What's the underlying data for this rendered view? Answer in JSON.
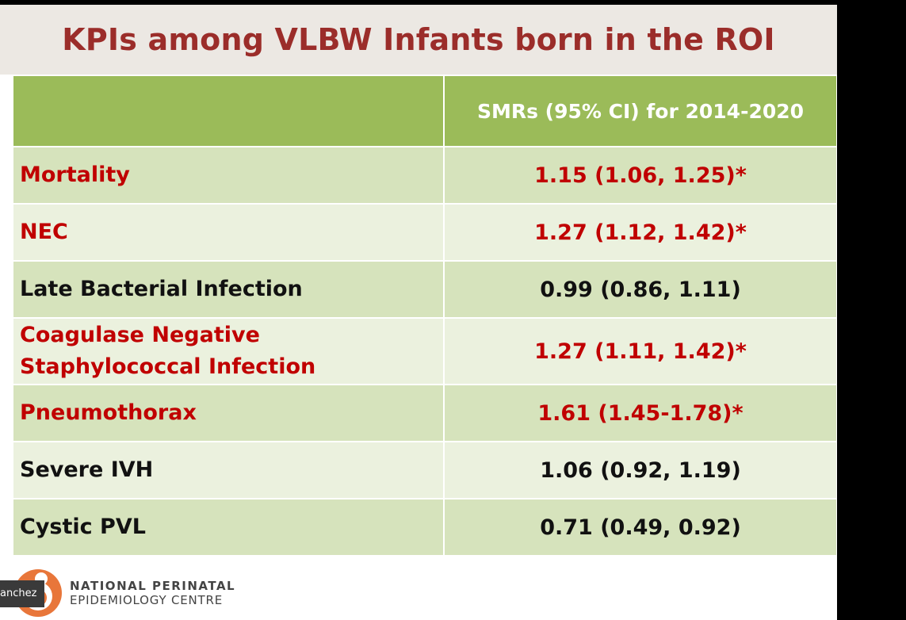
{
  "slide": {
    "title": "KPIs among VLBW Infants born in the ROI",
    "table": {
      "header": [
        "",
        "SMRs (95% CI) for 2014-2020"
      ],
      "rows": [
        {
          "label": "Mortality",
          "value": "1.15 (1.06, 1.25)*"
        },
        {
          "label": "NEC",
          "value": "1.27 (1.12, 1.42)*"
        },
        {
          "label": "Late Bacterial Infection",
          "value": "0.99 (0.86, 1.11)"
        },
        {
          "label": "Coagulase Negative Staphylococcal Infection",
          "value": "1.27 (1.11, 1.42)*"
        },
        {
          "label": "Pneumothorax",
          "value": "1.61 (1.45-1.78)*"
        },
        {
          "label": "Severe IVH",
          "value": "1.06 (0.92, 1.19)"
        },
        {
          "label": "Cystic PVL",
          "value": "0.71 (0.49, 0.92)"
        }
      ]
    },
    "footer": {
      "org_line1": "NATIONAL PERINATAL",
      "org_line2": "EPIDEMIOLOGY CENTRE"
    }
  },
  "presenter_tag": "anchez",
  "colors": {
    "title": "#9b2d2a",
    "header_bg": "#9bbb59",
    "row_dark": "#d6e3bc",
    "row_light": "#ebf1de",
    "significant_text": "#c00000",
    "logo_orange": "#e8763a"
  }
}
